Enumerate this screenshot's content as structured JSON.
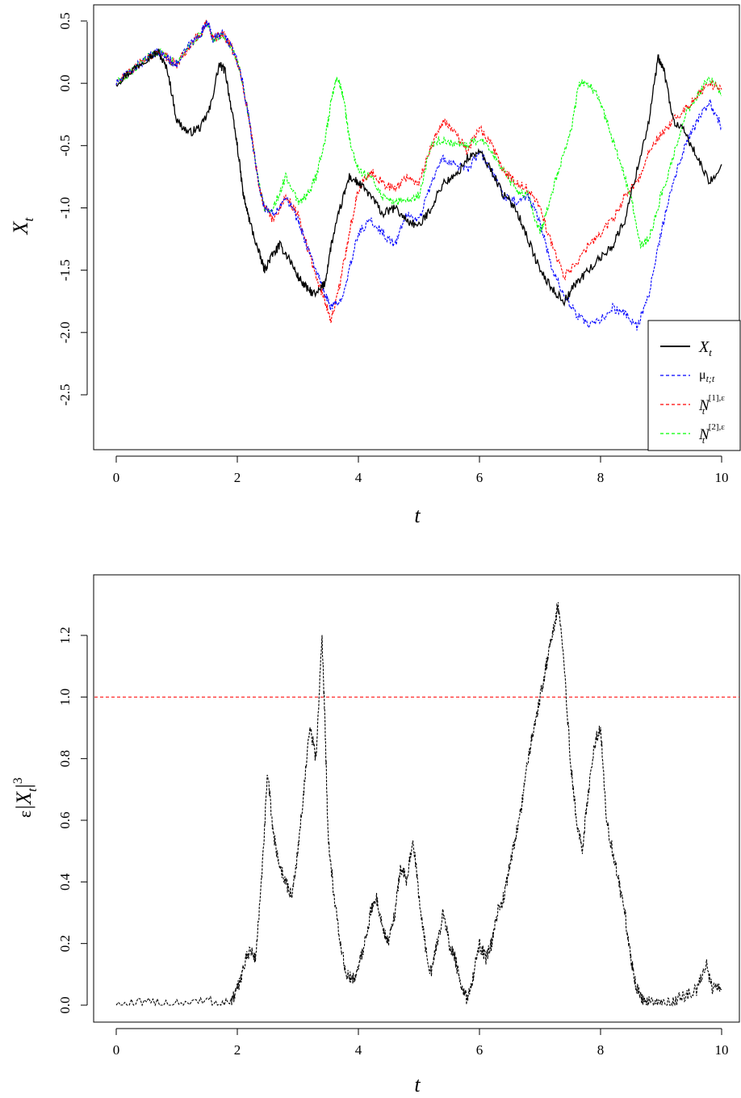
{
  "chart_data": [
    {
      "type": "line",
      "xlabel": "t",
      "ylabel": "X_t",
      "xlim": [
        0,
        10
      ],
      "ylim": [
        -2.95,
        0.6
      ],
      "xticks": [
        "0",
        "2",
        "4",
        "6",
        "8",
        "10"
      ],
      "yticks": [
        "0.5",
        "0.0",
        "-0.5",
        "-1.0",
        "-1.5",
        "-2.0",
        "-2.5"
      ],
      "legend_position": "bottom-right",
      "series": [
        {
          "name": "X_t",
          "color": "#000000",
          "style": "solid",
          "x": [
            0,
            0.25,
            0.5,
            0.7,
            0.85,
            1.0,
            1.2,
            1.4,
            1.55,
            1.7,
            1.8,
            1.9,
            2.0,
            2.1,
            2.2,
            2.35,
            2.45,
            2.55,
            2.7,
            2.85,
            3.0,
            3.15,
            3.3,
            3.45,
            3.55,
            3.7,
            3.85,
            4.0,
            4.2,
            4.4,
            4.6,
            4.8,
            5.0,
            5.2,
            5.4,
            5.6,
            5.8,
            6.0,
            6.2,
            6.4,
            6.6,
            6.8,
            7.0,
            7.2,
            7.4,
            7.6,
            7.8,
            8.0,
            8.2,
            8.4,
            8.6,
            8.8,
            8.95,
            9.05,
            9.2,
            9.4,
            9.6,
            9.8,
            10.0
          ],
          "y": [
            0.0,
            0.1,
            0.2,
            0.25,
            0.1,
            -0.3,
            -0.4,
            -0.35,
            -0.2,
            0.15,
            0.1,
            -0.2,
            -0.5,
            -0.9,
            -1.1,
            -1.35,
            -1.5,
            -1.4,
            -1.3,
            -1.4,
            -1.55,
            -1.65,
            -1.7,
            -1.6,
            -1.3,
            -1.0,
            -0.75,
            -0.8,
            -0.9,
            -1.05,
            -1.0,
            -1.1,
            -1.15,
            -1.0,
            -0.8,
            -0.75,
            -0.6,
            -0.55,
            -0.7,
            -0.9,
            -1.0,
            -1.25,
            -1.5,
            -1.65,
            -1.75,
            -1.6,
            -1.5,
            -1.4,
            -1.3,
            -1.1,
            -0.7,
            -0.3,
            0.2,
            0.1,
            -0.3,
            -0.4,
            -0.6,
            -0.8,
            -0.65
          ]
        },
        {
          "name": "μ_{t;t}",
          "color": "#0000ff",
          "style": "dashed",
          "x": [
            0,
            0.25,
            0.5,
            0.7,
            0.85,
            1.0,
            1.2,
            1.4,
            1.5,
            1.6,
            1.75,
            1.9,
            2.05,
            2.2,
            2.35,
            2.45,
            2.6,
            2.8,
            3.0,
            3.15,
            3.3,
            3.45,
            3.55,
            3.7,
            3.85,
            4.0,
            4.2,
            4.4,
            4.6,
            4.8,
            5.0,
            5.2,
            5.4,
            5.6,
            5.8,
            6.0,
            6.2,
            6.4,
            6.6,
            6.8,
            7.0,
            7.2,
            7.4,
            7.6,
            7.8,
            8.0,
            8.2,
            8.4,
            8.6,
            8.8,
            9.0,
            9.2,
            9.4,
            9.6,
            9.8,
            10.0
          ],
          "y": [
            0.0,
            0.1,
            0.2,
            0.25,
            0.2,
            0.15,
            0.3,
            0.4,
            0.5,
            0.35,
            0.4,
            0.3,
            0.1,
            -0.3,
            -0.8,
            -1.0,
            -1.05,
            -0.9,
            -1.1,
            -1.3,
            -1.5,
            -1.7,
            -1.8,
            -1.75,
            -1.5,
            -1.2,
            -1.1,
            -1.2,
            -1.3,
            -1.05,
            -1.1,
            -0.8,
            -0.6,
            -0.65,
            -0.7,
            -0.55,
            -0.7,
            -0.9,
            -0.95,
            -0.9,
            -1.1,
            -1.5,
            -1.7,
            -1.85,
            -1.95,
            -1.9,
            -1.8,
            -1.85,
            -1.95,
            -1.7,
            -1.2,
            -0.8,
            -0.5,
            -0.3,
            -0.15,
            -0.35
          ]
        },
        {
          "name": "N_t^{[1],ε}",
          "color": "#ff0000",
          "style": "dashed",
          "x": [
            0,
            0.25,
            0.5,
            0.7,
            0.85,
            1.0,
            1.2,
            1.4,
            1.5,
            1.6,
            1.75,
            1.9,
            2.05,
            2.2,
            2.35,
            2.45,
            2.6,
            2.8,
            3.0,
            3.15,
            3.3,
            3.45,
            3.55,
            3.7,
            3.85,
            4.0,
            4.2,
            4.4,
            4.6,
            4.8,
            5.0,
            5.2,
            5.4,
            5.6,
            5.8,
            6.0,
            6.2,
            6.4,
            6.6,
            6.8,
            7.0,
            7.2,
            7.4,
            7.6,
            7.8,
            8.0,
            8.2,
            8.4,
            8.6,
            8.8,
            9.0,
            9.2,
            9.4,
            9.6,
            9.8,
            10.0
          ],
          "y": [
            0.0,
            0.1,
            0.2,
            0.25,
            0.2,
            0.15,
            0.3,
            0.4,
            0.5,
            0.35,
            0.4,
            0.3,
            0.1,
            -0.3,
            -0.8,
            -1.0,
            -1.1,
            -0.9,
            -1.05,
            -1.3,
            -1.55,
            -1.75,
            -1.9,
            -1.6,
            -1.2,
            -0.85,
            -0.7,
            -0.8,
            -0.85,
            -0.75,
            -0.8,
            -0.5,
            -0.3,
            -0.4,
            -0.55,
            -0.35,
            -0.5,
            -0.7,
            -0.8,
            -0.85,
            -1.0,
            -1.3,
            -1.55,
            -1.45,
            -1.3,
            -1.2,
            -1.1,
            -0.9,
            -0.8,
            -0.55,
            -0.4,
            -0.3,
            -0.2,
            -0.1,
            0.0,
            -0.05
          ]
        },
        {
          "name": "N_t^{[2],ε}",
          "color": "#00ff00",
          "style": "dashed",
          "x": [
            0,
            0.25,
            0.5,
            0.7,
            0.85,
            1.0,
            1.2,
            1.4,
            1.5,
            1.6,
            1.75,
            1.9,
            2.05,
            2.2,
            2.35,
            2.45,
            2.6,
            2.8,
            3.0,
            3.15,
            3.3,
            3.45,
            3.55,
            3.65,
            3.75,
            3.85,
            4.0,
            4.2,
            4.4,
            4.6,
            4.8,
            5.0,
            5.2,
            5.4,
            5.6,
            5.8,
            6.0,
            6.2,
            6.4,
            6.6,
            6.8,
            7.0,
            7.1,
            7.3,
            7.5,
            7.65,
            7.8,
            7.95,
            8.1,
            8.3,
            8.5,
            8.65,
            8.8,
            9.0,
            9.2,
            9.4,
            9.6,
            9.8,
            10.0
          ],
          "y": [
            0.0,
            0.1,
            0.2,
            0.25,
            0.2,
            0.15,
            0.3,
            0.4,
            0.5,
            0.35,
            0.4,
            0.3,
            0.1,
            -0.3,
            -0.8,
            -1.0,
            -1.0,
            -0.75,
            -0.95,
            -0.9,
            -0.75,
            -0.45,
            -0.15,
            0.05,
            -0.1,
            -0.45,
            -0.7,
            -0.75,
            -0.9,
            -0.95,
            -0.95,
            -0.9,
            -0.5,
            -0.45,
            -0.5,
            -0.5,
            -0.45,
            -0.55,
            -0.7,
            -0.85,
            -0.9,
            -1.2,
            -1.05,
            -0.7,
            -0.4,
            0.0,
            0.0,
            -0.1,
            -0.3,
            -0.6,
            -0.9,
            -1.3,
            -1.25,
            -0.9,
            -0.6,
            -0.25,
            -0.1,
            0.05,
            -0.1
          ]
        }
      ]
    },
    {
      "type": "line",
      "xlabel": "t",
      "ylabel": "ε|X_t|^3",
      "xlim": [
        0,
        10
      ],
      "ylim": [
        -0.06,
        1.4
      ],
      "xticks": [
        "0",
        "2",
        "4",
        "6",
        "8",
        "10"
      ],
      "yticks": [
        "0.0",
        "0.2",
        "0.4",
        "0.6",
        "0.8",
        "1.0",
        "1.2"
      ],
      "reference_line": {
        "y": 1.0,
        "color": "#ff0000",
        "style": "dashed"
      },
      "series": [
        {
          "color": "#000000",
          "style": "dashed",
          "x": [
            0,
            0.5,
            1.0,
            1.5,
            1.9,
            2.0,
            2.1,
            2.2,
            2.3,
            2.4,
            2.5,
            2.6,
            2.7,
            2.8,
            2.9,
            3.0,
            3.1,
            3.2,
            3.3,
            3.4,
            3.45,
            3.5,
            3.6,
            3.7,
            3.8,
            3.9,
            4.0,
            4.1,
            4.2,
            4.3,
            4.4,
            4.5,
            4.6,
            4.7,
            4.8,
            4.9,
            5.0,
            5.1,
            5.2,
            5.3,
            5.4,
            5.5,
            5.6,
            5.7,
            5.8,
            5.9,
            6.0,
            6.1,
            6.2,
            6.3,
            6.4,
            6.5,
            6.6,
            6.7,
            6.8,
            6.9,
            7.0,
            7.1,
            7.2,
            7.3,
            7.4,
            7.5,
            7.6,
            7.7,
            7.8,
            7.9,
            8.0,
            8.1,
            8.2,
            8.3,
            8.4,
            8.5,
            8.6,
            8.7,
            8.8,
            9.0,
            9.2,
            9.4,
            9.6,
            9.75,
            9.85,
            10.0
          ],
          "y": [
            0.0,
            0.0,
            0.01,
            0.01,
            0.01,
            0.05,
            0.12,
            0.18,
            0.15,
            0.4,
            0.75,
            0.55,
            0.45,
            0.4,
            0.35,
            0.5,
            0.7,
            0.9,
            0.8,
            1.2,
            0.9,
            0.55,
            0.35,
            0.2,
            0.1,
            0.08,
            0.12,
            0.2,
            0.3,
            0.35,
            0.25,
            0.2,
            0.3,
            0.45,
            0.4,
            0.55,
            0.35,
            0.2,
            0.1,
            0.2,
            0.3,
            0.2,
            0.15,
            0.05,
            0.02,
            0.1,
            0.2,
            0.15,
            0.2,
            0.3,
            0.35,
            0.45,
            0.55,
            0.65,
            0.8,
            0.9,
            1.0,
            1.1,
            1.2,
            1.3,
            1.1,
            0.8,
            0.6,
            0.5,
            0.7,
            0.85,
            0.9,
            0.6,
            0.5,
            0.4,
            0.3,
            0.15,
            0.05,
            0.01,
            0.01,
            0.0,
            0.01,
            0.03,
            0.05,
            0.13,
            0.05,
            0.05
          ]
        }
      ]
    }
  ]
}
